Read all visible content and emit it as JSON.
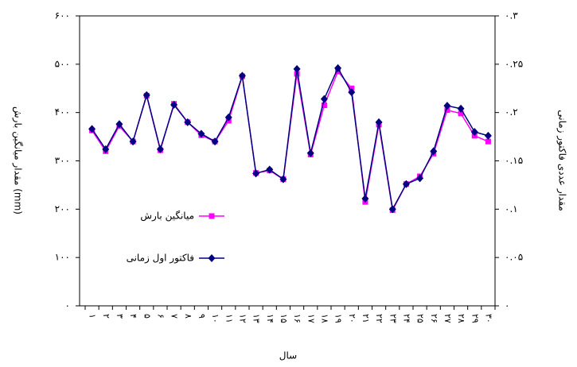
{
  "chart_data": {
    "type": "line",
    "x_label": "سال",
    "y_label": "مقدار میانگین بارش (mm)",
    "y2_label": "مقدار عددی فاکتور زمانی",
    "categories": [
      "۱",
      "۲",
      "۳",
      "۴",
      "۵",
      "۶",
      "۷",
      "۸",
      "۹",
      "۱۰",
      "۱۱",
      "۱۲",
      "۱۳",
      "۱۴",
      "۱۵",
      "۱۶",
      "۱۷",
      "۱۸",
      "۱۹",
      "۲۰",
      "۲۱",
      "۲۲",
      "۲۳",
      "۲۴",
      "۲۵",
      "۲۶",
      "۲۷",
      "۲۸",
      "۲۹",
      "۳۰"
    ],
    "series": [
      {
        "name": "میانگین بارش",
        "color": "#ff00ff",
        "marker": "square",
        "values": [
          363,
          320,
          372,
          340,
          435,
          322,
          418,
          380,
          353,
          340,
          383,
          475,
          275,
          280,
          262,
          480,
          313,
          415,
          485,
          450,
          215,
          375,
          198,
          252,
          268,
          315,
          405,
          398,
          352,
          340
        ]
      },
      {
        "name": "فاکتور اول زمانی",
        "color": "#000080",
        "marker": "diamond",
        "axis": "y2",
        "values": [
          0.183,
          0.162,
          0.188,
          0.17,
          0.218,
          0.162,
          0.208,
          0.19,
          0.178,
          0.17,
          0.195,
          0.238,
          0.137,
          0.141,
          0.131,
          0.245,
          0.158,
          0.214,
          0.246,
          0.221,
          0.111,
          0.19,
          0.1,
          0.126,
          0.132,
          0.16,
          0.207,
          0.204,
          0.18,
          0.176
        ]
      }
    ],
    "ylim": [
      0,
      600
    ],
    "yticks": [
      {
        "value": 0,
        "label": "۰"
      },
      {
        "value": 100,
        "label": "۱۰۰"
      },
      {
        "value": 200,
        "label": "۲۰۰"
      },
      {
        "value": 300,
        "label": "۳۰۰"
      },
      {
        "value": 400,
        "label": "۴۰۰"
      },
      {
        "value": 500,
        "label": "۵۰۰"
      },
      {
        "value": 600,
        "label": "۶۰۰"
      }
    ],
    "y2lim": [
      0,
      0.3
    ],
    "y2ticks": [
      {
        "value": 0,
        "label": "۰"
      },
      {
        "value": 0.05,
        "label": "۰.۰۵"
      },
      {
        "value": 0.1,
        "label": "۰.۱"
      },
      {
        "value": 0.15,
        "label": "۰.۱۵"
      },
      {
        "value": 0.2,
        "label": "۰.۲"
      },
      {
        "value": 0.25,
        "label": "۰.۲۵"
      },
      {
        "value": 0.3,
        "label": "۰.۳"
      }
    ]
  }
}
